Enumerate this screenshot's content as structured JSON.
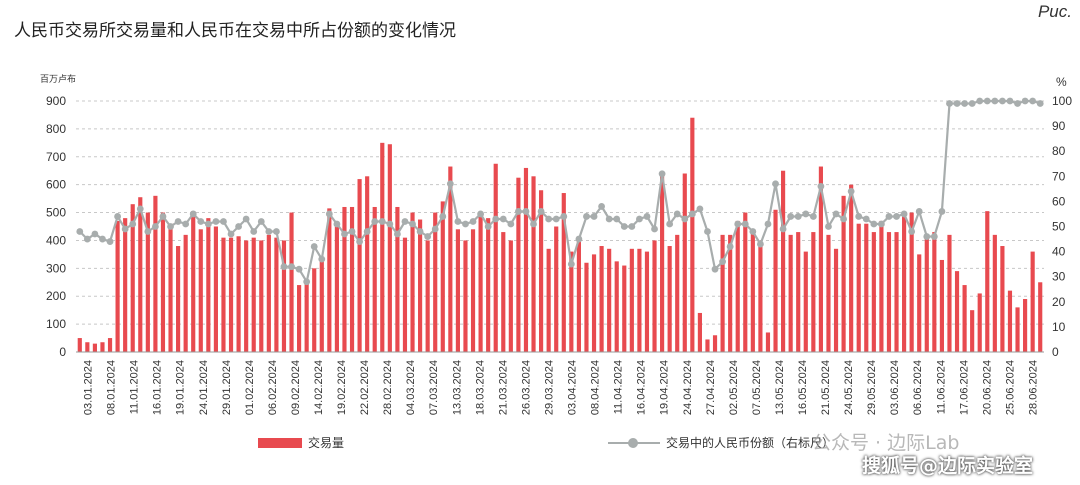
{
  "header": {
    "title": "人民币交易所交易量和人民币在交易中所占份额的变化情况",
    "fig_label": "Рис."
  },
  "chart_data": {
    "type": "bar",
    "left_unit": "百万卢布",
    "right_unit": "%",
    "left_ylim": [
      0,
      900
    ],
    "left_ticks": [
      0,
      100,
      200,
      300,
      400,
      500,
      600,
      700,
      800,
      900
    ],
    "right_ylim": [
      0,
      100
    ],
    "right_ticks": [
      0,
      10,
      20,
      30,
      40,
      50,
      60,
      70,
      80,
      90,
      100
    ],
    "grid": "horizontal dashed",
    "legend_position": "bottom",
    "x_labels": [
      "03.01.2024",
      "08.01.2024",
      "11.01.2024",
      "16.01.2024",
      "19.01.2024",
      "24.01.2024",
      "29.01.2024",
      "01.02.2024",
      "06.02.2024",
      "09.02.2024",
      "14.02.2024",
      "19.02.2024",
      "22.02.2024",
      "28.02.2024",
      "04.03.2024",
      "07.03.2024",
      "13.03.2024",
      "18.03.2024",
      "21.03.2024",
      "26.03.2024",
      "29.03.2024",
      "03.04.2024",
      "08.04.2024",
      "11.04.2024",
      "16.04.2024",
      "19.04.2024",
      "24.04.2024",
      "27.04.2024",
      "02.05.2024",
      "07.05.2024",
      "13.05.2024",
      "16.05.2024",
      "21.05.2024",
      "24.05.2024",
      "29.05.2024",
      "03.06.2024",
      "06.06.2024",
      "11.06.2024",
      "17.06.2024",
      "20.06.2024",
      "25.06.2024",
      "28.06.2024"
    ],
    "series": [
      {
        "name": "交易量",
        "axis": "left",
        "color": "#e84a4f",
        "values": [
          50,
          35,
          30,
          35,
          50,
          470,
          480,
          530,
          555,
          500,
          560,
          500,
          460,
          380,
          420,
          505,
          440,
          480,
          450,
          410,
          410,
          415,
          400,
          410,
          400,
          420,
          410,
          400,
          500,
          240,
          260,
          300,
          330,
          515,
          450,
          520,
          520,
          620,
          630,
          520,
          750,
          745,
          520,
          410,
          500,
          475,
          400,
          500,
          540,
          665,
          440,
          400,
          440,
          490,
          480,
          675,
          430,
          400,
          625,
          660,
          630,
          580,
          370,
          450,
          570,
          360,
          400,
          320,
          350,
          380,
          370,
          325,
          310,
          370,
          370,
          360,
          400,
          645,
          380,
          420,
          640,
          840,
          140,
          45,
          60,
          420,
          420,
          470,
          500,
          430,
          400,
          70,
          510,
          650,
          420,
          430,
          360,
          430,
          665,
          420,
          370,
          560,
          600,
          460,
          460,
          430,
          470,
          430,
          430,
          500,
          500,
          350,
          410,
          430,
          330,
          420,
          290,
          240,
          150,
          210,
          505,
          420,
          380,
          220,
          160,
          190,
          360,
          250
        ]
      },
      {
        "name": "交易中的人民币份额（右标尺）",
        "axis": "right",
        "color": "#a8adad",
        "values": [
          48,
          45,
          47,
          45,
          44,
          54,
          49,
          51,
          57,
          48,
          50,
          54,
          50,
          52,
          51,
          55,
          52,
          51,
          52,
          52,
          47,
          50,
          53,
          48,
          52,
          48,
          48,
          34,
          34,
          33,
          28,
          42,
          37,
          55,
          51,
          47,
          48,
          44,
          48,
          52,
          52,
          51,
          47,
          52,
          51,
          48,
          46,
          49,
          54,
          67,
          52,
          51,
          52,
          55,
          50,
          53,
          53,
          51,
          56,
          56,
          51,
          56,
          53,
          53,
          54,
          35,
          45,
          54,
          54,
          58,
          53,
          53,
          50,
          50,
          53,
          54,
          49,
          71,
          51,
          55,
          53,
          55,
          57,
          48,
          33,
          36,
          42,
          51,
          51,
          48,
          43,
          51,
          67,
          49,
          54,
          54,
          55,
          54,
          66,
          50,
          55,
          53,
          64,
          54,
          53,
          51,
          51,
          54,
          54,
          55,
          48,
          56,
          46,
          46,
          56,
          99,
          99,
          99,
          99,
          100,
          100,
          100,
          100,
          100,
          99,
          100,
          100,
          99
        ]
      }
    ]
  },
  "watermark": {
    "line1": "公众号 · 边际Lab",
    "line2": "搜狐号@边际实验室"
  }
}
